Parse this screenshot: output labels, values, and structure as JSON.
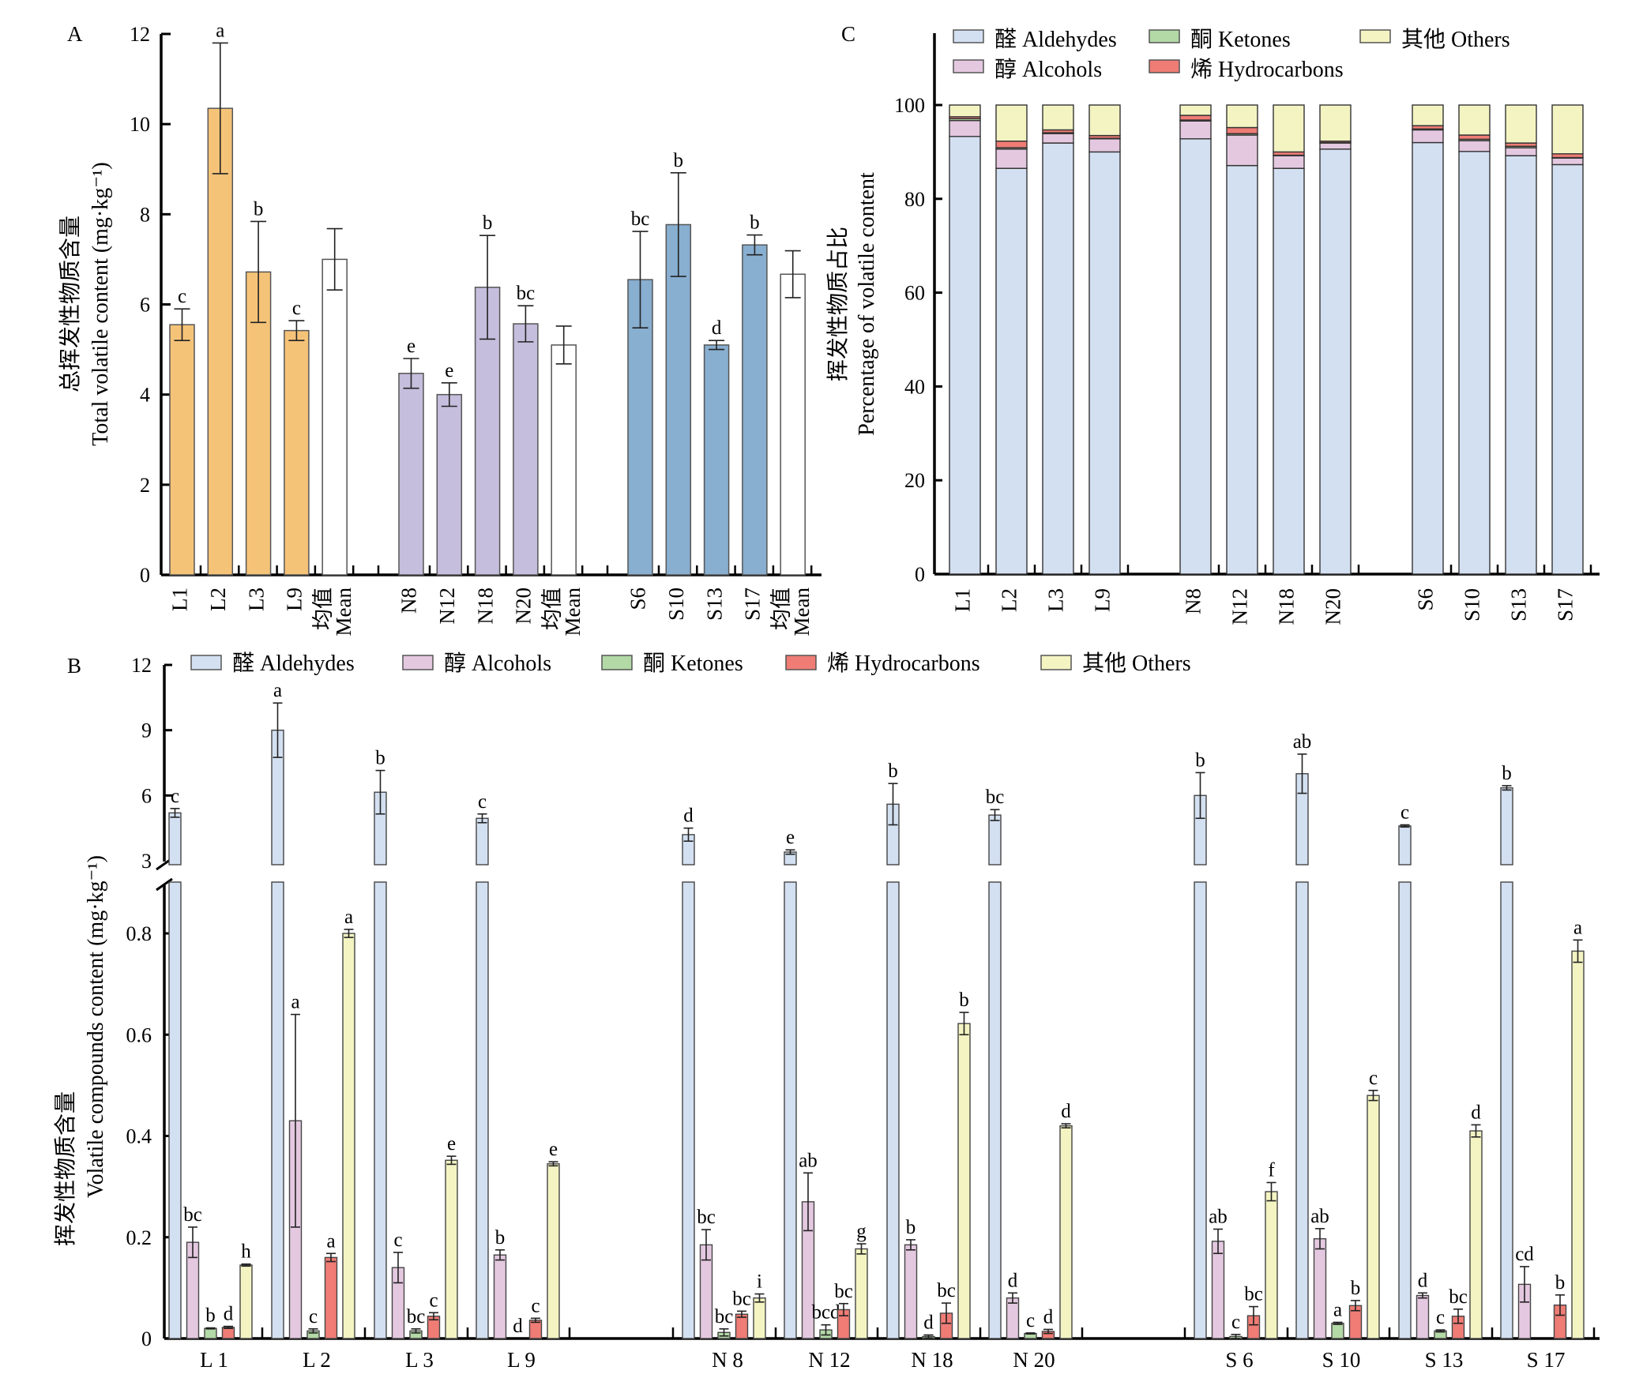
{
  "figure": {
    "panels": [
      "A",
      "B",
      "C"
    ]
  },
  "chart_data": [
    {
      "panel": "A",
      "type": "bar",
      "title": "",
      "ylabel_cn": "总挥发性物质含量",
      "ylabel_en": "Total volatile content (mg·kg⁻¹)",
      "ylim": [
        0,
        12
      ],
      "yticks": [
        0,
        2,
        4,
        6,
        8,
        10,
        12
      ],
      "groups": [
        {
          "name": "L",
          "color": "#f5c378",
          "categories": [
            "L1",
            "L2",
            "L3",
            "L9"
          ],
          "values": [
            5.55,
            10.35,
            6.72,
            5.42
          ],
          "errors": [
            0.35,
            1.45,
            1.12,
            0.22
          ],
          "letters": [
            "c",
            "a",
            "b",
            "c"
          ],
          "mean": 7.0,
          "mean_error": 0.68
        },
        {
          "name": "N",
          "color": "#c6bedd",
          "categories": [
            "N8",
            "N12",
            "N18",
            "N20"
          ],
          "values": [
            4.47,
            4.0,
            6.38,
            5.57
          ],
          "errors": [
            0.33,
            0.26,
            1.15,
            0.4
          ],
          "letters": [
            "e",
            "e",
            "b",
            "bc"
          ],
          "mean": 5.1,
          "mean_error": 0.42
        },
        {
          "name": "S",
          "color": "#88aed0",
          "categories": [
            "S6",
            "S10",
            "S13",
            "S17"
          ],
          "values": [
            6.55,
            7.77,
            5.1,
            7.32
          ],
          "errors": [
            1.07,
            1.15,
            0.1,
            0.22
          ],
          "letters": [
            "bc",
            "b",
            "d",
            "b"
          ],
          "mean": 6.67,
          "mean_error": 0.52
        }
      ],
      "mean_label_cn": "均值",
      "mean_label_en": "Mean"
    },
    {
      "panel": "B",
      "type": "bar",
      "title": "",
      "ylabel_cn": "挥发性物质含量",
      "ylabel_en": "Volatile compounds content (mg·kg⁻¹)",
      "broken_axis": true,
      "ylim_lower": [
        0,
        0.9
      ],
      "ylim_upper": [
        3,
        12
      ],
      "yticks_lower": [
        "0",
        "0.2",
        "0.4",
        "0.6",
        "0.8"
      ],
      "yticks_upper": [
        "3",
        "6",
        "9",
        "12"
      ],
      "legend": [
        "醛 Aldehydes",
        "醇 Alcohols",
        "酮 Ketones",
        "烯 Hydrocarbons",
        "其他 Others"
      ],
      "legend_position": "top",
      "categories": [
        "L 1",
        "L 2",
        "L 3",
        "L 9",
        "N 8",
        "N 12",
        "N 18",
        "N 20",
        "S 6",
        "S 10",
        "S 13",
        "S 17"
      ],
      "series": [
        {
          "name": "Aldehydes",
          "color": "#d3e0f1",
          "values": [
            5.2,
            9.0,
            6.15,
            4.95,
            4.2,
            3.4,
            5.6,
            5.1,
            6.0,
            7.0,
            4.6,
            6.35
          ],
          "errors": [
            0.2,
            1.25,
            1.0,
            0.2,
            0.3,
            0.1,
            0.95,
            0.25,
            1.05,
            0.9,
            0.05,
            0.1
          ],
          "letters": [
            "c",
            "a",
            "b",
            "c",
            "d",
            "e",
            "b",
            "bc",
            "b",
            "ab",
            "c",
            "b"
          ]
        },
        {
          "name": "Alcohols",
          "color": "#e4c8e0",
          "values": [
            0.19,
            0.43,
            0.14,
            0.165,
            0.185,
            0.27,
            0.185,
            0.08,
            0.192,
            0.197,
            0.085,
            0.107
          ],
          "errors": [
            0.03,
            0.21,
            0.03,
            0.01,
            0.03,
            0.057,
            0.01,
            0.01,
            0.024,
            0.02,
            0.005,
            0.035
          ],
          "letters": [
            "bc",
            "a",
            "c",
            "b",
            "bc",
            "ab",
            "b",
            "d",
            "ab",
            "ab",
            "d",
            "cd"
          ]
        },
        {
          "name": "Ketones",
          "color": "#b3d9a6",
          "values": [
            0.02,
            0.015,
            0.015,
            0.0,
            0.012,
            0.017,
            0.004,
            0.01,
            0.004,
            0.03,
            0.015,
            0.0
          ],
          "errors": [
            0.001,
            0.004,
            0.004,
            0.0,
            0.007,
            0.01,
            0.003,
            0.001,
            0.004,
            0.002,
            0.002,
            0.0
          ],
          "letters": [
            "b",
            "c",
            "bc",
            "d",
            "bc",
            "bcd",
            "d",
            "c",
            "c",
            "a",
            "c",
            ""
          ]
        },
        {
          "name": "Hydrocarbons",
          "color": "#ef7c75",
          "values": [
            0.022,
            0.16,
            0.044,
            0.036,
            0.048,
            0.057,
            0.05,
            0.014,
            0.045,
            0.065,
            0.044,
            0.066
          ],
          "errors": [
            0.002,
            0.008,
            0.007,
            0.004,
            0.006,
            0.012,
            0.02,
            0.004,
            0.018,
            0.01,
            0.014,
            0.02
          ],
          "letters": [
            "d",
            "a",
            "c",
            "c",
            "bc",
            "bc",
            "bc",
            "d",
            "bc",
            "b",
            "bc",
            "b"
          ]
        },
        {
          "name": "Others",
          "color": "#f3f4c2",
          "values": [
            0.145,
            0.8,
            0.352,
            0.345,
            0.08,
            0.177,
            0.622,
            0.42,
            0.29,
            0.48,
            0.41,
            0.765
          ],
          "errors": [
            0.002,
            0.008,
            0.008,
            0.004,
            0.008,
            0.01,
            0.022,
            0.004,
            0.018,
            0.01,
            0.012,
            0.022
          ],
          "letters": [
            "h",
            "a",
            "e",
            "e",
            "i",
            "g",
            "b",
            "d",
            "f",
            "c",
            "d",
            "a"
          ]
        }
      ]
    },
    {
      "panel": "C",
      "type": "bar",
      "stacked": true,
      "title": "",
      "ylabel_cn": "挥发性物质占比",
      "ylabel_en": "Percentage of volatile content",
      "ylim": [
        0,
        100
      ],
      "yticks": [
        0,
        20,
        40,
        60,
        80,
        100
      ],
      "legend": [
        "醛 Aldehydes",
        "醇 Alcohols",
        "酮 Ketones",
        "烯 Hydrocarbons",
        "其他 Others"
      ],
      "legend_position": "top",
      "categories": [
        "L1",
        "L2",
        "L3",
        "L9",
        "N8",
        "N12",
        "N18",
        "N20",
        "S6",
        "S10",
        "S13",
        "S17"
      ],
      "series": [
        {
          "name": "Aldehydes",
          "color": "#d3e0f1",
          "values": [
            93.3,
            86.5,
            91.9,
            90.0,
            92.8,
            87.1,
            86.5,
            90.6,
            92.0,
            90.1,
            89.2,
            87.3
          ]
        },
        {
          "name": "Alcohols",
          "color": "#e4c8e0",
          "values": [
            3.4,
            4.1,
            2.0,
            2.8,
            3.8,
            6.5,
            2.7,
            1.3,
            2.7,
            2.3,
            1.7,
            1.4
          ]
        },
        {
          "name": "Ketones",
          "color": "#b3d9a6",
          "values": [
            0.4,
            0.3,
            0.2,
            0.1,
            0.2,
            0.3,
            0.1,
            0.1,
            0.2,
            0.3,
            0.3,
            0.1
          ]
        },
        {
          "name": "Hydrocarbons",
          "color": "#ef7c75",
          "values": [
            0.4,
            1.4,
            0.6,
            0.6,
            1.0,
            1.3,
            0.7,
            0.3,
            0.7,
            0.9,
            0.7,
            0.8
          ]
        },
        {
          "name": "Others",
          "color": "#f3f4c2",
          "values": [
            2.5,
            7.7,
            5.3,
            6.5,
            2.2,
            4.8,
            10.0,
            7.7,
            4.4,
            6.4,
            8.1,
            10.4
          ]
        }
      ]
    }
  ]
}
